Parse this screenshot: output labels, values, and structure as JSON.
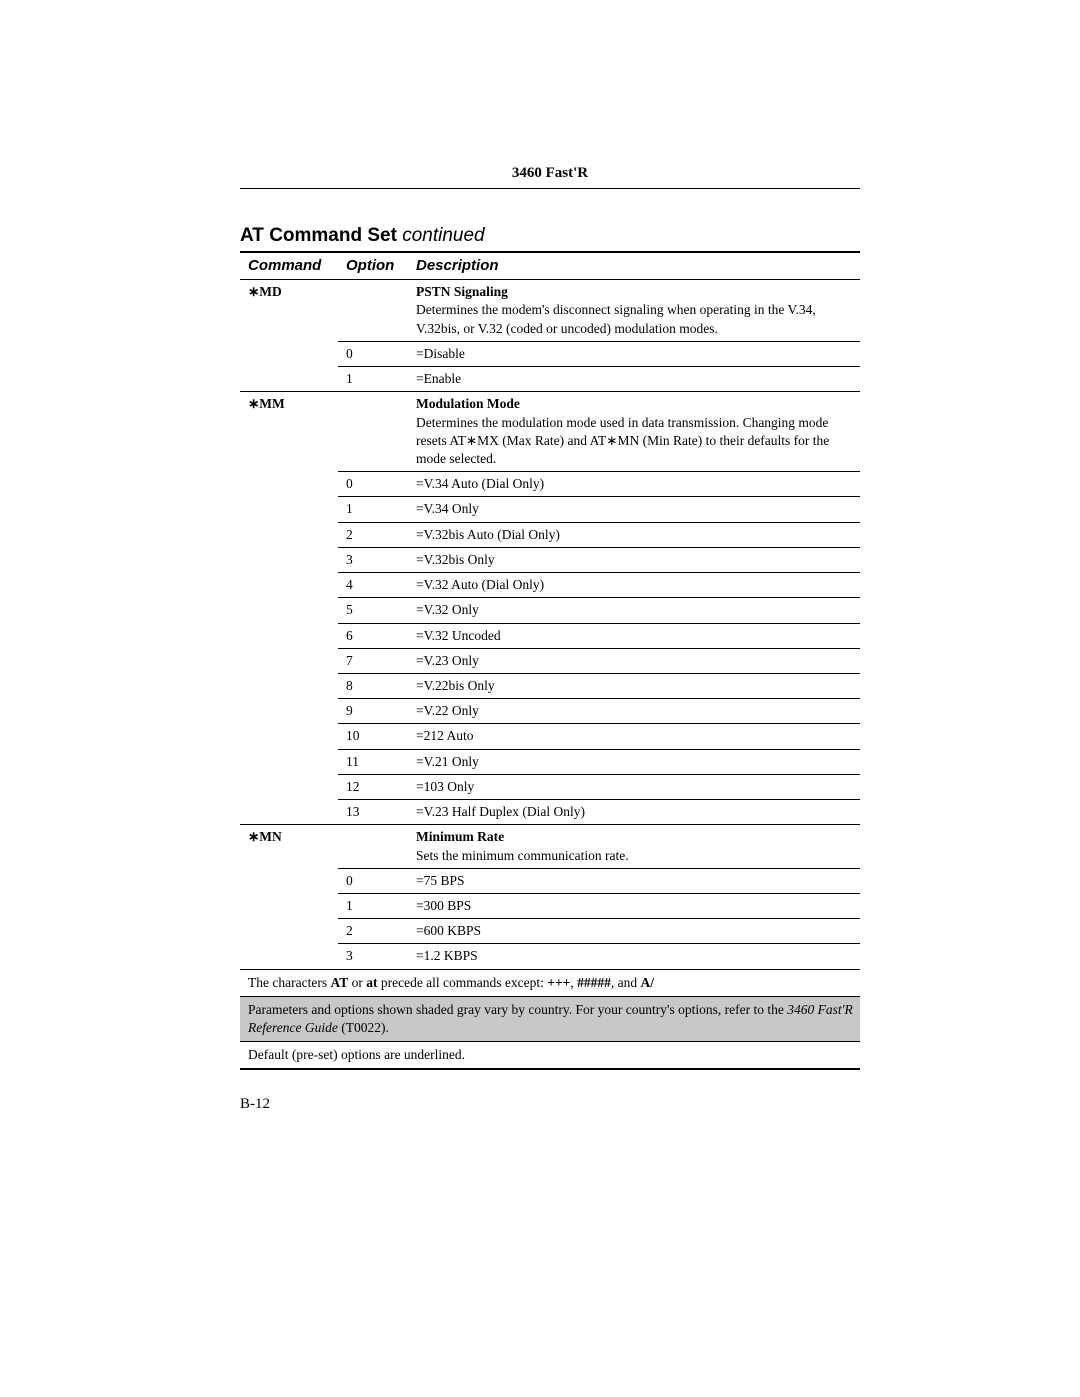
{
  "header": {
    "title": "3460 Fast'R"
  },
  "section": {
    "title_bold": "AT Command Set",
    "title_cont": " continued"
  },
  "columns": {
    "command": "Command",
    "option": "Option",
    "description": "Description"
  },
  "groups": [
    {
      "command": "∗MD",
      "title": "PSTN Signaling",
      "desc": "Determines the modem's disconnect signaling when operating in the V.34, V.32bis, or V.32 (coded or uncoded) modulation modes.",
      "options": [
        {
          "opt": "0",
          "val": "=Disable"
        },
        {
          "opt": "1",
          "val": "=Enable"
        }
      ]
    },
    {
      "command": "∗MM",
      "title": "Modulation Mode",
      "desc": "Determines the modulation mode used in data transmission. Changing mode resets AT∗MX (Max Rate) and AT∗MN (Min Rate) to their defaults for the mode selected.",
      "options": [
        {
          "opt": "0",
          "val": "=V.34 Auto (Dial Only)"
        },
        {
          "opt": "1",
          "val": "=V.34 Only"
        },
        {
          "opt": "2",
          "val": "=V.32bis Auto (Dial Only)"
        },
        {
          "opt": "3",
          "val": "=V.32bis Only"
        },
        {
          "opt": "4",
          "val": "=V.32 Auto (Dial Only)"
        },
        {
          "opt": "5",
          "val": "=V.32 Only"
        },
        {
          "opt": "6",
          "val": "=V.32 Uncoded"
        },
        {
          "opt": "7",
          "val": "=V.23 Only"
        },
        {
          "opt": "8",
          "val": "=V.22bis Only"
        },
        {
          "opt": "9",
          "val": "=V.22 Only"
        },
        {
          "opt": "10",
          "val": "=212 Auto"
        },
        {
          "opt": "11",
          "val": "=V.21 Only"
        },
        {
          "opt": "12",
          "val": "=103 Only"
        },
        {
          "opt": "13",
          "val": "=V.23 Half Duplex (Dial Only)"
        }
      ]
    },
    {
      "command": "∗MN",
      "title": "Minimum Rate",
      "desc": "Sets the minimum communication rate.",
      "options": [
        {
          "opt": "0",
          "val": "=75 BPS"
        },
        {
          "opt": "1",
          "val": "=300 BPS"
        },
        {
          "opt": "2",
          "val": "=600 KBPS"
        },
        {
          "opt": "3",
          "val": "=1.2 KBPS"
        }
      ]
    }
  ],
  "footer": {
    "line1_pre": "The characters ",
    "line1_b1": "AT",
    "line1_mid1": " or ",
    "line1_b2": "at",
    "line1_mid2": " precede all commands except: ",
    "line1_b3": "+++",
    "line1_mid3": ", ",
    "line1_b4": "#####",
    "line1_mid4": ", and ",
    "line1_b5": "A/",
    "line2_pre": "Parameters and options shown shaded gray vary by country. For your country's options, refer to the ",
    "line2_ital": "3460 Fast'R Reference Guide",
    "line2_post": " (T0022).",
    "line3": "Default (pre-set) options are underlined."
  },
  "page_number": "B-12"
}
